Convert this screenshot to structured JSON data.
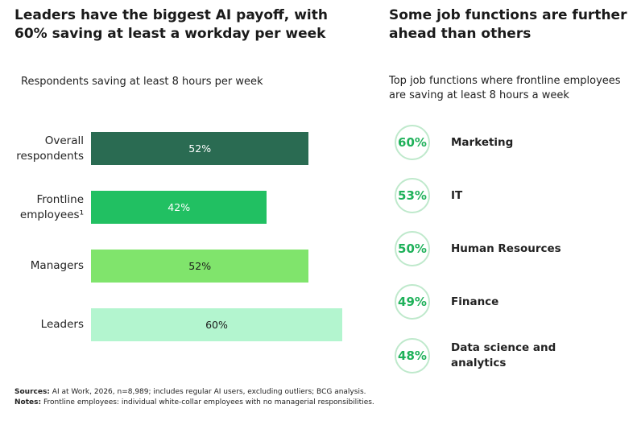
{
  "chart_data": [
    {
      "type": "bar",
      "orientation": "horizontal",
      "title": "Leaders have the biggest AI payoff, with 60% saving at least a workday per week",
      "subtitle": "Respondents saving at least 8 hours per week",
      "categories": [
        "Overall respondents",
        "Frontline employees¹",
        "Managers",
        "Leaders"
      ],
      "values": [
        52,
        42,
        52,
        60
      ],
      "value_labels": [
        "52%",
        "42%",
        "52%",
        "60%"
      ],
      "colors": [
        "#2a6b52",
        "#21c062",
        "#80e46c",
        "#b3f5cf"
      ],
      "label_colors": [
        "#ffffff",
        "#ffffff",
        "#1a1a1a",
        "#1a1a1a"
      ]
    },
    {
      "type": "ranking",
      "title": "Some job functions are further ahead than others",
      "subtitle": "Top job functions where frontline employees are saving at least 8 hours a week",
      "categories": [
        "Marketing",
        "IT",
        "Human Resources",
        "Finance",
        "Data science and analytics"
      ],
      "values": [
        60,
        53,
        50,
        49,
        48
      ],
      "value_labels": [
        "60%",
        "53%",
        "50%",
        "49%",
        "48%"
      ],
      "color": "#1fb15a"
    }
  ],
  "footnotes": {
    "sources_label": "Sources:",
    "sources": "AI at Work, 2026, n=8,989; includes regular AI users, excluding outliers; BCG analysis.",
    "notes_label": "Notes:",
    "notes": "Frontline employees: individual white-collar employees with no managerial responsibilities."
  }
}
